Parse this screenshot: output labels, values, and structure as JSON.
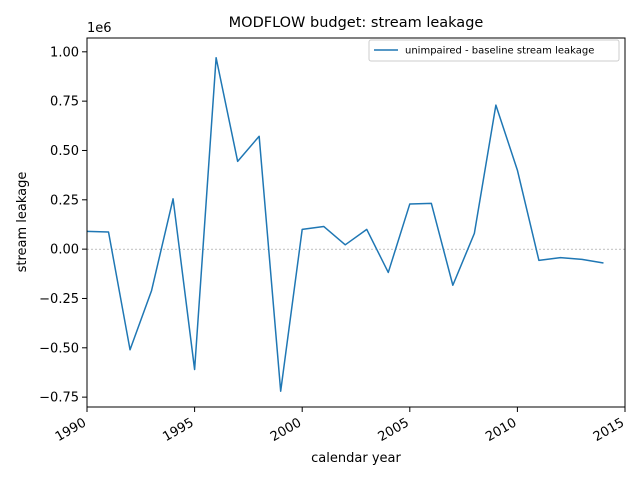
{
  "chart_data": {
    "type": "line",
    "title": "MODFLOW budget: stream leakage",
    "xlabel": "calendar year",
    "ylabel": "stream leakage",
    "y_offset_label": "1e6",
    "xlim": [
      1990,
      2015
    ],
    "ylim": [
      -0.8,
      1.07
    ],
    "y_multiplier": 1000000,
    "x_ticks": [
      1990,
      1995,
      2000,
      2005,
      2010,
      2015
    ],
    "x_tick_labels": [
      "1990",
      "1995",
      "2000",
      "2005",
      "2010",
      "2015"
    ],
    "y_ticks": [
      -0.75,
      -0.5,
      -0.25,
      0.0,
      0.25,
      0.5,
      0.75,
      1.0
    ],
    "y_tick_labels": [
      "−0.75",
      "−0.50",
      "−0.25",
      "0.00",
      "0.25",
      "0.50",
      "0.75",
      "1.00"
    ],
    "zero_line": true,
    "grid": false,
    "legend_position": "top-right",
    "series": [
      {
        "name": "unimpaired - baseline stream leakage",
        "color": "#1f77b4",
        "x": [
          1990,
          1991,
          1992,
          1993,
          1994,
          1995,
          1996,
          1997,
          1998,
          1999,
          2000,
          2001,
          2002,
          2003,
          2004,
          2005,
          2006,
          2007,
          2008,
          2009,
          2010,
          2011,
          2012,
          2013,
          2014
        ],
        "y": [
          0.09,
          0.087,
          -0.51,
          -0.21,
          0.255,
          -0.61,
          0.97,
          0.445,
          0.572,
          -0.72,
          0.1,
          0.115,
          0.022,
          0.1,
          -0.118,
          0.229,
          0.232,
          -0.183,
          0.08,
          0.73,
          0.4,
          -0.057,
          -0.043,
          -0.052,
          -0.07
        ]
      }
    ]
  }
}
